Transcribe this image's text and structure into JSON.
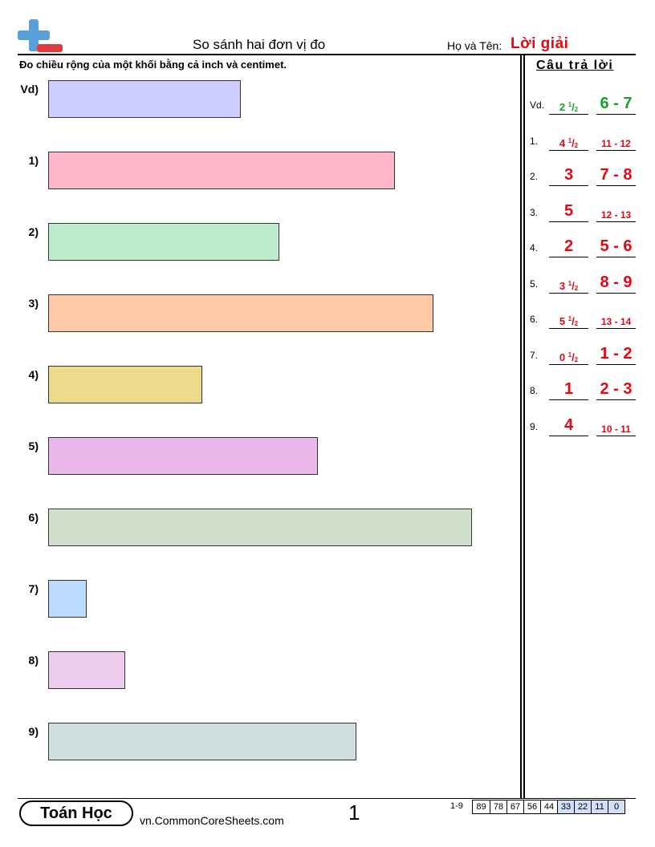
{
  "header": {
    "title": "So sánh hai đơn vị đo",
    "name_label": "Họ và Tên:",
    "name_value": "Lời giải"
  },
  "instructions": "Đo chiều rộng của một khối bằng cả inch và centimet.",
  "answers_title": "Câu trả lời",
  "problems": [
    {
      "label": "Vd)",
      "color": "#ccccff",
      "inches": 2.5
    },
    {
      "label": "1)",
      "color": "#ffb6c8",
      "inches": 4.5
    },
    {
      "label": "2)",
      "color": "#bdeccd",
      "inches": 3
    },
    {
      "label": "3)",
      "color": "#ffcba6",
      "inches": 5
    },
    {
      "label": "4)",
      "color": "#ebdb8b",
      "inches": 2
    },
    {
      "label": "5)",
      "color": "#ebb8eb",
      "inches": 3.5
    },
    {
      "label": "6)",
      "color": "#cfdfcc",
      "inches": 5.5
    },
    {
      "label": "7)",
      "color": "#bcdcff",
      "inches": 0.5
    },
    {
      "label": "8)",
      "color": "#edcbec",
      "inches": 1
    },
    {
      "label": "9)",
      "color": "#cde0df",
      "inches": 4
    }
  ],
  "answers": [
    {
      "label": "Vd.",
      "inch_whole": "2",
      "inch_num": "1",
      "inch_den": "2",
      "cm": "6 - 7",
      "cm_size": "big",
      "color": "green"
    },
    {
      "label": "1.",
      "inch_whole": "4",
      "inch_num": "1",
      "inch_den": "2",
      "cm": "11 - 12",
      "cm_size": "small",
      "color": "red"
    },
    {
      "label": "2.",
      "inch_whole": "3",
      "inch_num": "",
      "inch_den": "",
      "cm": "7 - 8",
      "cm_size": "big",
      "color": "red"
    },
    {
      "label": "3.",
      "inch_whole": "5",
      "inch_num": "",
      "inch_den": "",
      "cm": "12 - 13",
      "cm_size": "small",
      "color": "red"
    },
    {
      "label": "4.",
      "inch_whole": "2",
      "inch_num": "",
      "inch_den": "",
      "cm": "5 - 6",
      "cm_size": "big",
      "color": "red"
    },
    {
      "label": "5.",
      "inch_whole": "3",
      "inch_num": "1",
      "inch_den": "2",
      "cm": "8 - 9",
      "cm_size": "big",
      "color": "red"
    },
    {
      "label": "6.",
      "inch_whole": "5",
      "inch_num": "1",
      "inch_den": "2",
      "cm": "13 - 14",
      "cm_size": "small",
      "color": "red"
    },
    {
      "label": "7.",
      "inch_whole": "0",
      "inch_num": "1",
      "inch_den": "2",
      "cm": "1 - 2",
      "cm_size": "big",
      "color": "red"
    },
    {
      "label": "8.",
      "inch_whole": "1",
      "inch_num": "",
      "inch_den": "",
      "cm": "2 - 3",
      "cm_size": "big",
      "color": "red"
    },
    {
      "label": "9.",
      "inch_whole": "4",
      "inch_num": "",
      "inch_den": "",
      "cm": "10 - 11",
      "cm_size": "small",
      "color": "red"
    }
  ],
  "footer": {
    "brand": "Toán Học",
    "url": "vn.CommonCoreSheets.com",
    "page": "1",
    "range": "1-9",
    "scores": [
      "89",
      "78",
      "67",
      "56",
      "44",
      "33",
      "22",
      "11",
      "0"
    ]
  },
  "icons": {
    "logo": "plus-minus-logo-icon"
  }
}
